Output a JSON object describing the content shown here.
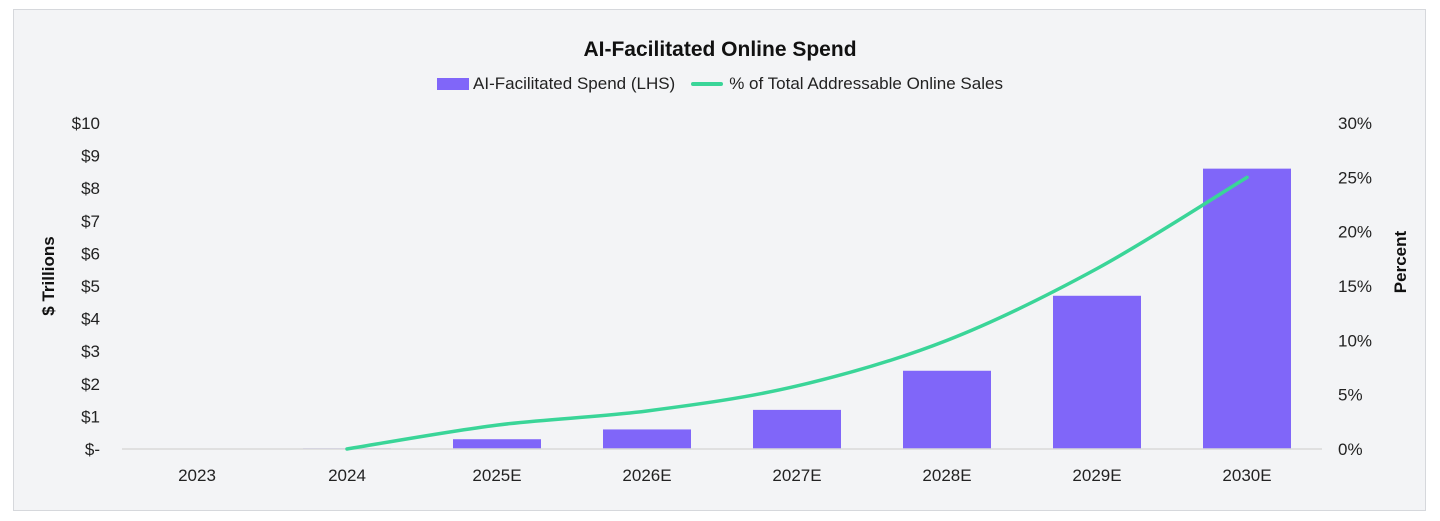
{
  "chart_data": {
    "type": "bar",
    "title": "AI-Facilitated Online Spend",
    "categories": [
      "2023",
      "2024",
      "2025E",
      "2026E",
      "2027E",
      "2028E",
      "2029E",
      "2030E"
    ],
    "series": [
      {
        "name": "AI-Facilitated Spend (LHS)",
        "type": "bar",
        "axis": "left",
        "color": "#8066f9",
        "values": [
          0.0,
          0.02,
          0.3,
          0.6,
          1.2,
          2.4,
          4.7,
          8.6
        ]
      },
      {
        "name": "% of Total Addressable Online Sales",
        "type": "line",
        "axis": "right",
        "color": "#3ad598",
        "values": [
          null,
          0.0,
          2.2,
          3.5,
          5.8,
          10.0,
          16.6,
          25.0
        ]
      }
    ],
    "ylabel": "$ Trillions",
    "ylabel_right": "Percent",
    "ylim": [
      0,
      10
    ],
    "ylim_right": [
      0,
      30
    ],
    "y_ticks": [
      "$-",
      "$1",
      "$2",
      "$3",
      "$4",
      "$5",
      "$6",
      "$7",
      "$8",
      "$9",
      "$10"
    ],
    "y_ticks_right": [
      "0%",
      "5%",
      "10%",
      "15%",
      "20%",
      "25%",
      "30%"
    ],
    "legend_position": "top-center",
    "grid": false
  }
}
